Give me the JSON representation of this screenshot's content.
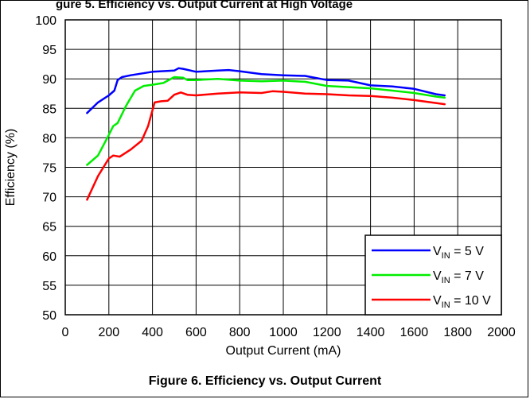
{
  "header_fragment": "gure 5. Efficiency vs. Output Current at High Voltage",
  "figure_caption": "Figure 6. Efficiency vs. Output Current",
  "chart_data": {
    "type": "line",
    "title": "",
    "xlabel": "Output Current (mA)",
    "ylabel": "Efficiency (%)",
    "xlim": [
      0,
      2000
    ],
    "ylim": [
      50,
      100
    ],
    "x_ticks": [
      0,
      200,
      400,
      600,
      800,
      1000,
      1200,
      1400,
      1600,
      1800,
      2000
    ],
    "y_ticks": [
      50,
      55,
      60,
      65,
      70,
      75,
      80,
      85,
      90,
      95,
      100
    ],
    "grid": true,
    "legend_position": "bottom-right",
    "series": [
      {
        "name": "VIN = 5 V",
        "legend_main": "V",
        "legend_sub": "IN",
        "legend_rest": " = 5 V",
        "color": "#0000ff",
        "points": [
          [
            100,
            84.2
          ],
          [
            150,
            86.0
          ],
          [
            200,
            87.2
          ],
          [
            225,
            88.0
          ],
          [
            240,
            89.8
          ],
          [
            260,
            90.3
          ],
          [
            300,
            90.6
          ],
          [
            400,
            91.2
          ],
          [
            500,
            91.4
          ],
          [
            520,
            91.8
          ],
          [
            540,
            91.7
          ],
          [
            600,
            91.2
          ],
          [
            700,
            91.4
          ],
          [
            750,
            91.5
          ],
          [
            800,
            91.3
          ],
          [
            900,
            90.8
          ],
          [
            1000,
            90.6
          ],
          [
            1100,
            90.5
          ],
          [
            1200,
            89.8
          ],
          [
            1300,
            89.7
          ],
          [
            1400,
            88.9
          ],
          [
            1500,
            88.7
          ],
          [
            1600,
            88.3
          ],
          [
            1700,
            87.4
          ],
          [
            1740,
            87.2
          ]
        ]
      },
      {
        "name": "VIN = 7 V",
        "legend_main": "V",
        "legend_sub": "IN",
        "legend_rest": " = 7 V",
        "color": "#00ee00",
        "points": [
          [
            100,
            75.4
          ],
          [
            150,
            77.0
          ],
          [
            200,
            80.5
          ],
          [
            220,
            82.0
          ],
          [
            240,
            82.5
          ],
          [
            280,
            85.5
          ],
          [
            320,
            88.0
          ],
          [
            360,
            88.8
          ],
          [
            400,
            89.0
          ],
          [
            450,
            89.3
          ],
          [
            500,
            90.3
          ],
          [
            540,
            90.2
          ],
          [
            560,
            89.8
          ],
          [
            600,
            89.8
          ],
          [
            700,
            90.0
          ],
          [
            800,
            89.7
          ],
          [
            900,
            89.6
          ],
          [
            1000,
            89.7
          ],
          [
            1100,
            89.5
          ],
          [
            1200,
            88.8
          ],
          [
            1300,
            88.6
          ],
          [
            1400,
            88.4
          ],
          [
            1500,
            88.0
          ],
          [
            1600,
            87.6
          ],
          [
            1700,
            87.0
          ],
          [
            1740,
            86.8
          ]
        ]
      },
      {
        "name": "VIN = 10 V",
        "legend_main": "V",
        "legend_sub": "IN",
        "legend_rest": " = 10 V",
        "color": "#ff0000",
        "points": [
          [
            100,
            69.5
          ],
          [
            150,
            73.5
          ],
          [
            200,
            76.5
          ],
          [
            220,
            77.0
          ],
          [
            250,
            76.8
          ],
          [
            300,
            78.0
          ],
          [
            350,
            79.5
          ],
          [
            380,
            82.0
          ],
          [
            410,
            86.0
          ],
          [
            440,
            86.2
          ],
          [
            470,
            86.3
          ],
          [
            500,
            87.3
          ],
          [
            530,
            87.7
          ],
          [
            560,
            87.3
          ],
          [
            600,
            87.2
          ],
          [
            700,
            87.5
          ],
          [
            800,
            87.7
          ],
          [
            900,
            87.6
          ],
          [
            950,
            87.9
          ],
          [
            1000,
            87.8
          ],
          [
            1100,
            87.5
          ],
          [
            1200,
            87.4
          ],
          [
            1300,
            87.2
          ],
          [
            1400,
            87.1
          ],
          [
            1500,
            86.8
          ],
          [
            1600,
            86.4
          ],
          [
            1700,
            85.9
          ],
          [
            1740,
            85.7
          ]
        ]
      }
    ]
  }
}
